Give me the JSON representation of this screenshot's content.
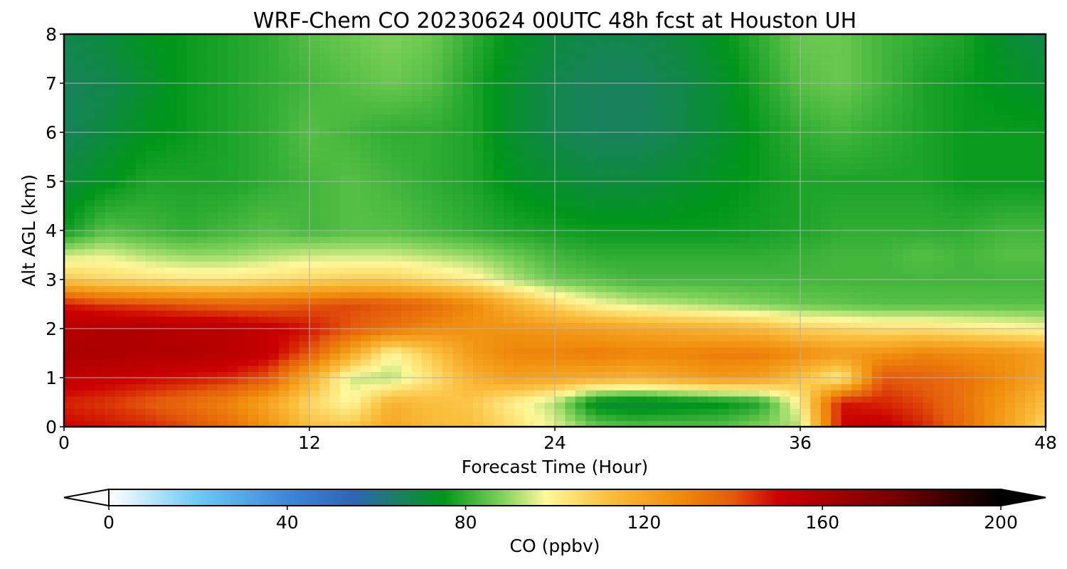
{
  "chart_data": {
    "type": "heatmap",
    "title": "WRF-Chem CO  20230624 00UTC 48h fcst at Houston UH",
    "xlabel": "Forecast Time (Hour)",
    "ylabel": "Alt AGL (km)",
    "xlim": [
      0,
      48
    ],
    "ylim": [
      0,
      8
    ],
    "x_ticks": [
      0,
      12,
      24,
      36,
      48
    ],
    "y_ticks": [
      0,
      1,
      2,
      3,
      4,
      5,
      6,
      7,
      8
    ],
    "grid": true,
    "x": [
      0,
      2,
      4,
      6,
      8,
      10,
      12,
      14,
      16,
      18,
      20,
      22,
      24,
      26,
      28,
      30,
      32,
      34,
      36,
      38,
      40,
      42,
      44,
      46,
      48
    ],
    "y": [
      0,
      0.5,
      1,
      1.5,
      2,
      2.5,
      3,
      3.5,
      4,
      5,
      6,
      7,
      8
    ],
    "values": [
      [
        150,
        148,
        146,
        142,
        136,
        126,
        112,
        110,
        120,
        114,
        112,
        104,
        96,
        86,
        84,
        84,
        84,
        88,
        92,
        150,
        152,
        146,
        136,
        122,
        106
      ],
      [
        146,
        144,
        140,
        136,
        130,
        120,
        106,
        98,
        116,
        112,
        110,
        100,
        92,
        72,
        70,
        72,
        74,
        78,
        100,
        148,
        146,
        142,
        134,
        124,
        112
      ],
      [
        154,
        152,
        150,
        148,
        146,
        140,
        118,
        94,
        92,
        104,
        116,
        122,
        120,
        118,
        116,
        120,
        124,
        122,
        112,
        100,
        140,
        138,
        134,
        128,
        120
      ],
      [
        160,
        160,
        158,
        158,
        156,
        152,
        140,
        120,
        98,
        110,
        124,
        130,
        130,
        132,
        130,
        130,
        132,
        132,
        128,
        124,
        126,
        130,
        128,
        126,
        122
      ],
      [
        156,
        158,
        158,
        156,
        156,
        152,
        148,
        140,
        134,
        128,
        126,
        126,
        124,
        122,
        120,
        118,
        116,
        114,
        108,
        106,
        104,
        104,
        102,
        100,
        98
      ],
      [
        148,
        144,
        142,
        140,
        138,
        138,
        140,
        142,
        140,
        136,
        128,
        116,
        106,
        98,
        94,
        92,
        90,
        88,
        86,
        85,
        84,
        84,
        84,
        84,
        84
      ],
      [
        110,
        106,
        104,
        102,
        102,
        104,
        106,
        108,
        108,
        104,
        100,
        92,
        86,
        84,
        82,
        82,
        82,
        82,
        82,
        82,
        82,
        82,
        82,
        82,
        82
      ],
      [
        94,
        96,
        92,
        90,
        90,
        92,
        94,
        94,
        94,
        92,
        90,
        86,
        82,
        80,
        80,
        80,
        80,
        80,
        81,
        82,
        82,
        84,
        82,
        84,
        84
      ],
      [
        76,
        84,
        82,
        80,
        82,
        84,
        82,
        84,
        84,
        82,
        80,
        78,
        77,
        76,
        76,
        76,
        76,
        77,
        78,
        80,
        80,
        80,
        80,
        82,
        82
      ],
      [
        70,
        74,
        78,
        78,
        78,
        80,
        82,
        84,
        82,
        80,
        78,
        74,
        72,
        70,
        70,
        72,
        74,
        76,
        78,
        78,
        78,
        78,
        76,
        76,
        76
      ],
      [
        66,
        70,
        74,
        76,
        78,
        80,
        84,
        82,
        80,
        80,
        78,
        72,
        68,
        66,
        66,
        68,
        72,
        76,
        80,
        82,
        80,
        78,
        76,
        76,
        76
      ],
      [
        66,
        68,
        72,
        76,
        78,
        80,
        82,
        84,
        86,
        84,
        78,
        72,
        68,
        66,
        66,
        68,
        72,
        78,
        84,
        86,
        82,
        78,
        76,
        74,
        72
      ],
      [
        68,
        70,
        74,
        76,
        78,
        80,
        84,
        86,
        88,
        86,
        80,
        74,
        70,
        68,
        68,
        70,
        74,
        80,
        86,
        86,
        82,
        80,
        78,
        72,
        68
      ]
    ],
    "colorbar": {
      "label": "CO  (ppbv)",
      "min": 0,
      "max": 200,
      "ticks": [
        0,
        40,
        80,
        120,
        160,
        200
      ],
      "extend": "both",
      "stops": [
        {
          "v": 0,
          "c": "#ffffff"
        },
        {
          "v": 20,
          "c": "#6cc9f5"
        },
        {
          "v": 40,
          "c": "#3d87d8"
        },
        {
          "v": 55,
          "c": "#2f64b3"
        },
        {
          "v": 63,
          "c": "#1f7a70"
        },
        {
          "v": 75,
          "c": "#00961a"
        },
        {
          "v": 88,
          "c": "#7dd15a"
        },
        {
          "v": 98,
          "c": "#fff89a"
        },
        {
          "v": 112,
          "c": "#fbbf3e"
        },
        {
          "v": 128,
          "c": "#f08c0c"
        },
        {
          "v": 140,
          "c": "#e45a0c"
        },
        {
          "v": 150,
          "c": "#cc0000"
        },
        {
          "v": 175,
          "c": "#7a0000"
        },
        {
          "v": 200,
          "c": "#000000"
        }
      ]
    }
  }
}
